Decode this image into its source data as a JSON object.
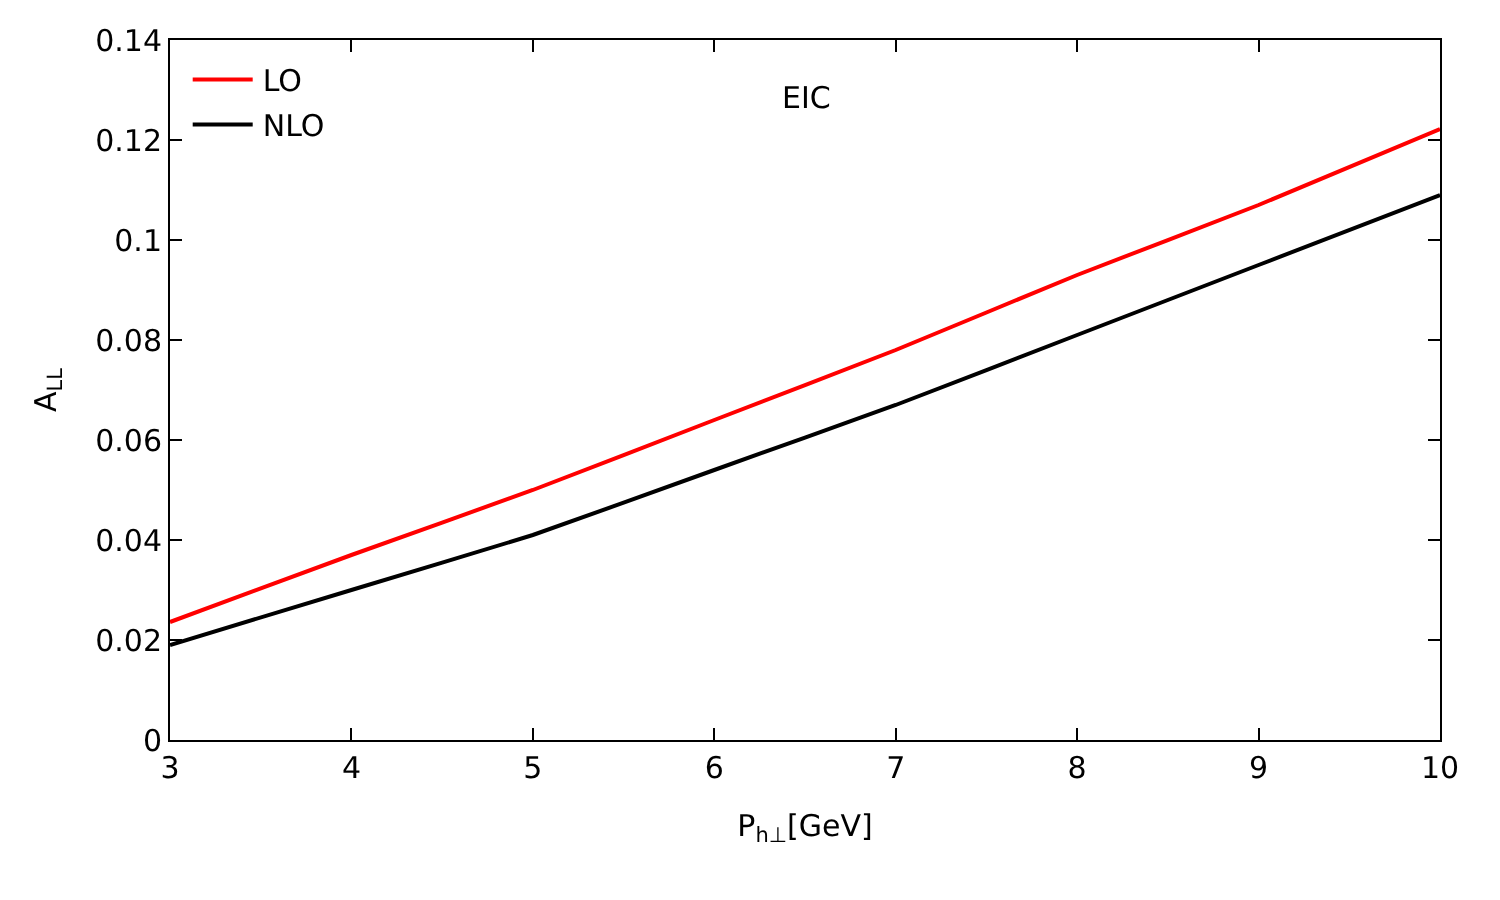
{
  "chart_data": {
    "type": "line",
    "xlabel": "P$_{h⊥}$[GeV]",
    "ylabel": "A$_{LL}$",
    "annotations": [
      "EIC"
    ],
    "x": [
      3,
      4,
      5,
      6,
      7,
      8,
      9,
      10
    ],
    "series": [
      {
        "name": "LO",
        "color": "#ff0000",
        "values": [
          0.0236,
          0.037,
          0.05,
          0.064,
          0.078,
          0.093,
          0.107,
          0.1222
        ]
      },
      {
        "name": "NLO",
        "color": "#000000",
        "values": [
          0.019,
          0.03,
          0.041,
          0.054,
          0.067,
          0.081,
          0.095,
          0.109
        ]
      }
    ],
    "xlim": [
      3,
      10
    ],
    "xticks": [
      3,
      4,
      5,
      6,
      7,
      8,
      9,
      10
    ],
    "ylim": [
      0,
      0.14
    ],
    "yticks": [
      0,
      0.02,
      0.04,
      0.06,
      0.08,
      0.1,
      0.12,
      0.14
    ],
    "legend": "top left",
    "marker": "none",
    "line_style": "solid"
  }
}
